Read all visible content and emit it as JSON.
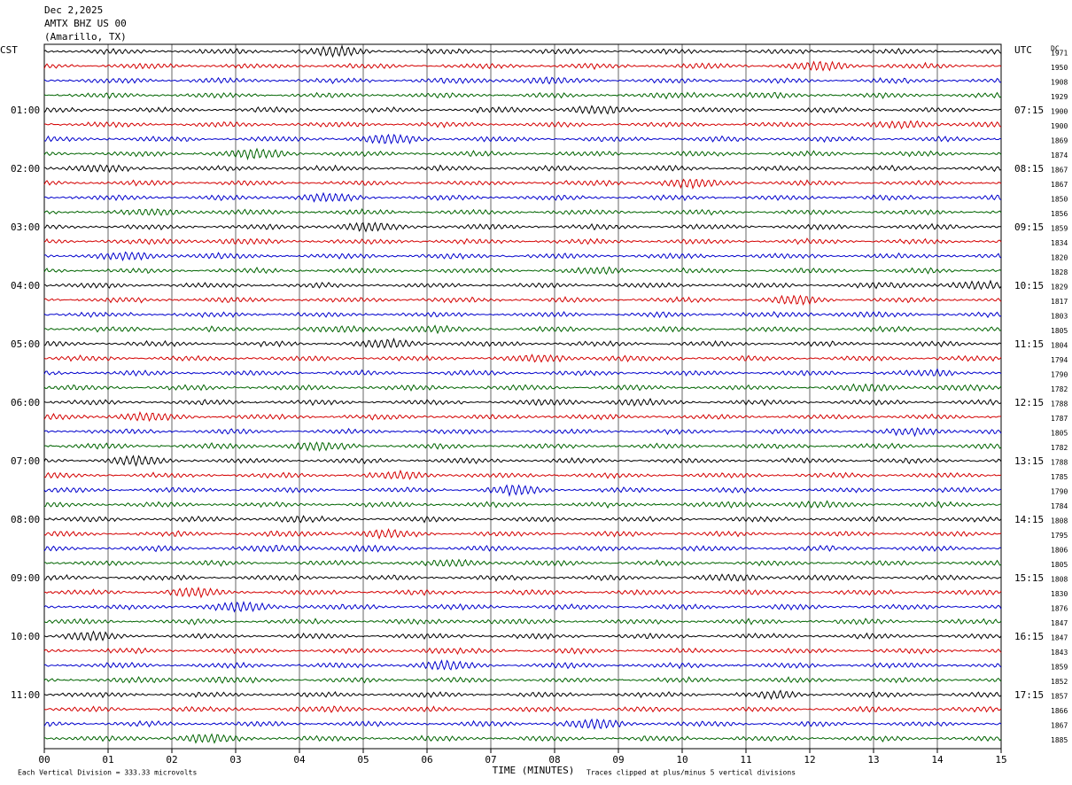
{
  "chart_data": {
    "type": "seismogram",
    "title_lines": [
      "Dec 2,2025",
      "AMTX BHZ US 00",
      "(Amarillo, TX)"
    ],
    "left_axis_label": "CST",
    "right_axis_label": "UTC",
    "offset_label": "DC",
    "xlabel": "TIME (MINUTES)",
    "scale_note": "Each Vertical Division =  333.33 microvolts",
    "clip_note": "Traces clipped at plus/minus 5 vertical divisions",
    "xlim": [
      0,
      15
    ],
    "xticks": [
      {
        "value": 0,
        "label": "00"
      },
      {
        "value": 1,
        "label": "01"
      },
      {
        "value": 2,
        "label": "02"
      },
      {
        "value": 3,
        "label": "03"
      },
      {
        "value": 4,
        "label": "04"
      },
      {
        "value": 5,
        "label": "05"
      },
      {
        "value": 6,
        "label": "06"
      },
      {
        "value": 7,
        "label": "07"
      },
      {
        "value": 8,
        "label": "08"
      },
      {
        "value": 9,
        "label": "09"
      },
      {
        "value": 10,
        "label": "10"
      },
      {
        "value": 11,
        "label": "11"
      },
      {
        "value": 12,
        "label": "12"
      },
      {
        "value": 13,
        "label": "13"
      },
      {
        "value": 14,
        "label": "14"
      },
      {
        "value": 15,
        "label": "15"
      }
    ],
    "grid": true,
    "colors": [
      "#000000",
      "#d40000",
      "#0000cc",
      "#006400"
    ],
    "cst_labels": [
      null,
      null,
      null,
      null,
      "01:00",
      null,
      null,
      null,
      "02:00",
      null,
      null,
      null,
      "03:00",
      null,
      null,
      null,
      "04:00",
      null,
      null,
      null,
      "05:00",
      null,
      null,
      null,
      "06:00",
      null,
      null,
      null,
      "07:00",
      null,
      null,
      null,
      "08:00",
      null,
      null,
      null,
      "09:00",
      null,
      null,
      null,
      "10:00",
      null,
      null,
      null,
      "11:00",
      null,
      null,
      null
    ],
    "utc_labels": [
      null,
      null,
      null,
      null,
      "07:15",
      null,
      null,
      null,
      "08:15",
      null,
      null,
      null,
      "09:15",
      null,
      null,
      null,
      "10:15",
      null,
      null,
      null,
      "11:15",
      null,
      null,
      null,
      "12:15",
      null,
      null,
      null,
      "13:15",
      null,
      null,
      null,
      "14:15",
      null,
      null,
      null,
      "15:15",
      null,
      null,
      null,
      "16:15",
      null,
      null,
      null,
      "17:15",
      null,
      null,
      null
    ],
    "dc_offsets": [
      1971,
      1950,
      1908,
      1929,
      1900,
      1900,
      1869,
      1874,
      1867,
      1867,
      1850,
      1856,
      1859,
      1834,
      1820,
      1828,
      1829,
      1817,
      1803,
      1805,
      1804,
      1794,
      1790,
      1782,
      1788,
      1787,
      1805,
      1782,
      1788,
      1785,
      1790,
      1784,
      1808,
      1795,
      1806,
      1805,
      1808,
      1830,
      1876,
      1847,
      1847,
      1843,
      1859,
      1852,
      1857,
      1866,
      1867,
      1885
    ]
  }
}
